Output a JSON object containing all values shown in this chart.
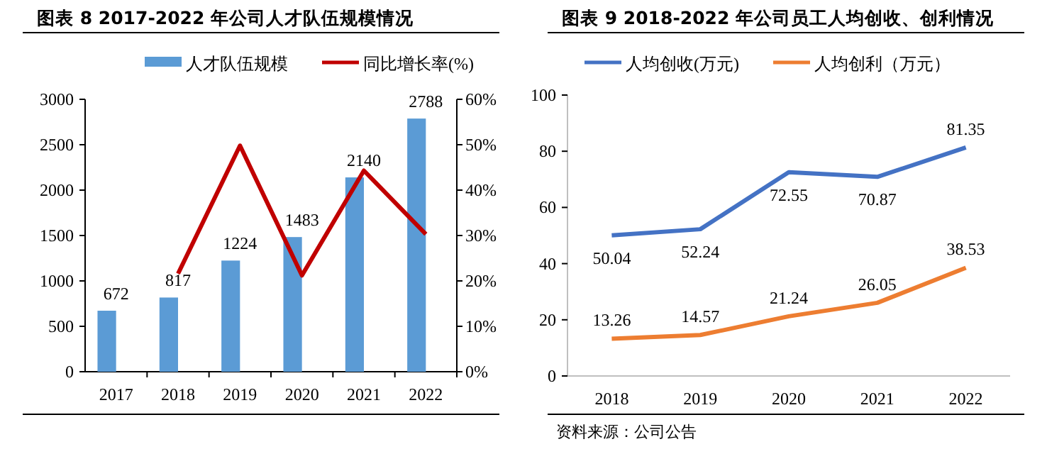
{
  "chart_data": [
    {
      "type": "bar",
      "title": "图表 8 2017-2022 年公司人才队伍规模情况",
      "categories": [
        "2017",
        "2018",
        "2019",
        "2020",
        "2021",
        "2022"
      ],
      "series": [
        {
          "name": "人才队伍规模",
          "color": "#5b9bd5",
          "values": [
            672,
            817,
            1224,
            1483,
            2140,
            2788
          ],
          "value_labels": [
            "672",
            "817",
            "1224",
            "1483",
            "2140",
            "2788"
          ]
        },
        {
          "name": "同比增长率(%)",
          "type": "line",
          "axis": "y2",
          "color": "#c00000",
          "values": [
            null,
            21.6,
            49.8,
            21.2,
            44.3,
            30.3
          ]
        }
      ],
      "ylim": [
        0,
        3000
      ],
      "yticks": [
        0,
        500,
        1000,
        1500,
        2000,
        2500,
        3000
      ],
      "y2lim": [
        0,
        60
      ],
      "y2ticks": [
        {
          "value": 0,
          "label": "0%"
        },
        {
          "value": 10,
          "label": "10%"
        },
        {
          "value": 20,
          "label": "20%"
        },
        {
          "value": 30,
          "label": "30%"
        },
        {
          "value": 40,
          "label": "40%"
        },
        {
          "value": 50,
          "label": "50%"
        },
        {
          "value": 60,
          "label": "60%"
        }
      ],
      "legend": "top"
    },
    {
      "type": "line",
      "title": "图表 9 2018-2022 年公司员工人均创收、创利情况",
      "categories": [
        "2018",
        "2019",
        "2020",
        "2021",
        "2022"
      ],
      "series": [
        {
          "name": "人均创收(万元)",
          "color": "#4472c4",
          "values": [
            50.04,
            52.24,
            72.55,
            70.87,
            81.35
          ]
        },
        {
          "name": "人均创利（万元）",
          "color": "#ed7d31",
          "values": [
            13.26,
            14.57,
            21.24,
            26.05,
            38.53
          ]
        }
      ],
      "ylim": [
        0,
        100
      ],
      "yticks": [
        0,
        20,
        40,
        60,
        80,
        100
      ],
      "data_labels": true,
      "legend": "top",
      "annotations": [
        "资料来源：公司公告"
      ]
    }
  ]
}
